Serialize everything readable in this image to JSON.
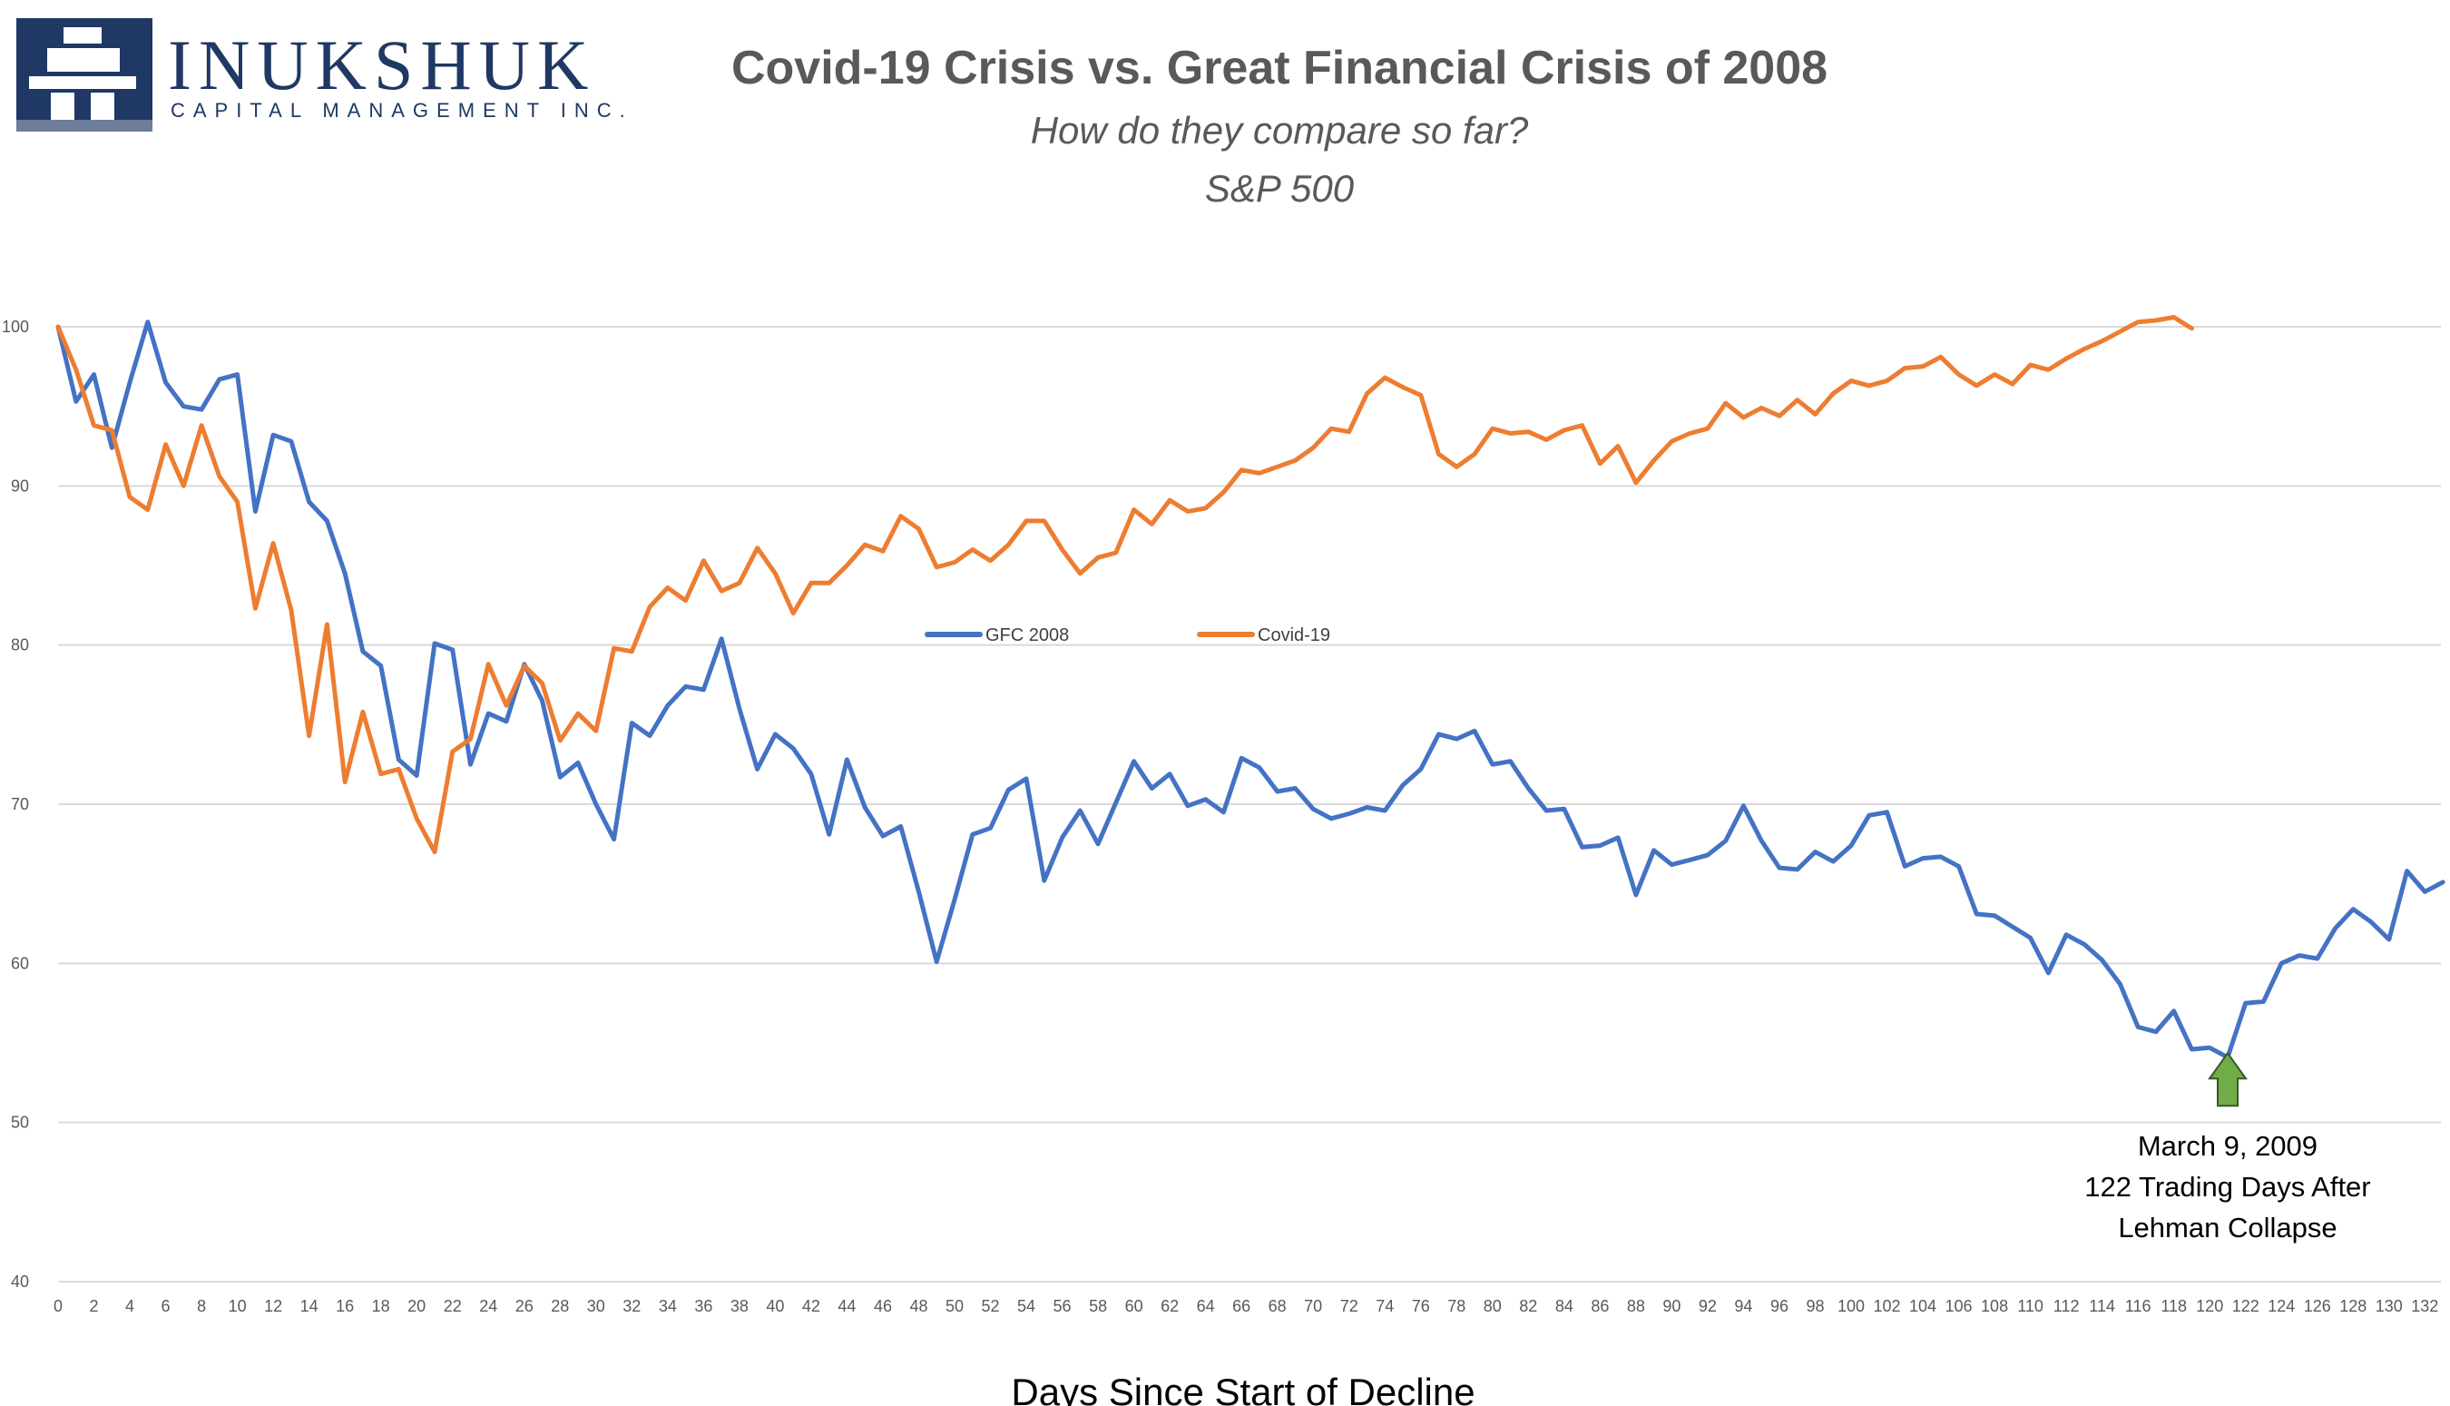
{
  "logo": {
    "name": "INUKSHUK",
    "subtitle": "CAPITAL MANAGEMENT INC.",
    "colors": {
      "navy": "#1f3864"
    }
  },
  "chart_data": {
    "type": "line",
    "title": "Covid-19 Crisis vs. Great Financial Crisis of 2008",
    "subtitle_lines": [
      "How do they compare so far?",
      "S&P 500"
    ],
    "xlabel": "Days Since Start of Decline",
    "ylabel": "",
    "xlim": [
      0,
      133
    ],
    "ylim": [
      40,
      100
    ],
    "yticks": [
      40,
      50,
      60,
      70,
      80,
      90,
      100
    ],
    "xticks": [
      0,
      2,
      4,
      6,
      8,
      10,
      12,
      14,
      16,
      18,
      20,
      22,
      24,
      26,
      28,
      30,
      32,
      34,
      36,
      38,
      40,
      42,
      44,
      46,
      48,
      50,
      52,
      54,
      56,
      58,
      60,
      62,
      64,
      66,
      68,
      70,
      72,
      74,
      76,
      78,
      80,
      82,
      84,
      86,
      88,
      90,
      92,
      94,
      96,
      98,
      100,
      102,
      104,
      106,
      108,
      110,
      112,
      114,
      116,
      118,
      120,
      122,
      124,
      126,
      128,
      130,
      132
    ],
    "grid": "horizontal",
    "legend_position": "center",
    "series": [
      {
        "name": "GFC 2008",
        "color": "#4472c4",
        "values": [
          100,
          95.3,
          97,
          92.4,
          96.5,
          100.3,
          96.5,
          95,
          94.8,
          96.7,
          97,
          88.4,
          93.2,
          92.8,
          89,
          87.8,
          84.5,
          79.6,
          78.7,
          72.8,
          71.8,
          80.1,
          79.7,
          72.5,
          75.7,
          75.2,
          78.8,
          76.5,
          71.7,
          72.6,
          70,
          67.8,
          75.1,
          74.3,
          76.2,
          77.4,
          77.2,
          80.4,
          76,
          72.2,
          74.4,
          73.5,
          71.9,
          68.1,
          72.8,
          69.8,
          68,
          68.6,
          64.5,
          60.1,
          64,
          68.1,
          68.5,
          70.9,
          71.6,
          65.2,
          67.9,
          69.6,
          67.5,
          70.1,
          72.7,
          71,
          71.9,
          69.9,
          70.3,
          69.5,
          72.9,
          72.3,
          70.8,
          71,
          69.7,
          69.1,
          69.4,
          69.8,
          69.6,
          71.2,
          72.2,
          74.4,
          74.1,
          74.6,
          72.5,
          72.7,
          71,
          69.6,
          69.7,
          67.3,
          67.4,
          67.9,
          64.3,
          67.1,
          66.2,
          66.5,
          66.8,
          67.7,
          69.9,
          67.7,
          66,
          65.9,
          67,
          66.4,
          67.4,
          69.3,
          69.5,
          66.1,
          66.6,
          66.7,
          66.1,
          63.1,
          63,
          62.3,
          61.6,
          59.4,
          61.8,
          61.2,
          60.2,
          58.7,
          56,
          55.7,
          57,
          54.6,
          54.7,
          54.1,
          57.5,
          57.6,
          60,
          60.5,
          60.3,
          62.2,
          63.4,
          62.6,
          61.5,
          65.8,
          64.5,
          65.1
        ]
      },
      {
        "name": "Covid-19",
        "color": "#ed7d31",
        "values": [
          100,
          97.3,
          93.8,
          93.5,
          89.3,
          88.5,
          92.6,
          90,
          93.8,
          90.6,
          89,
          82.3,
          86.4,
          82.2,
          74.3,
          81.3,
          71.4,
          75.8,
          71.9,
          72.2,
          69.1,
          67,
          73.3,
          74.1,
          78.8,
          76.2,
          78.7,
          77.6,
          74,
          75.7,
          74.6,
          79.8,
          79.6,
          82.4,
          83.6,
          82.8,
          85.3,
          83.4,
          83.9,
          86.1,
          84.5,
          82,
          83.9,
          83.9,
          85,
          86.3,
          85.9,
          88.1,
          87.3,
          84.9,
          85.2,
          86,
          85.3,
          86.3,
          87.8,
          87.8,
          86,
          84.5,
          85.5,
          85.8,
          88.5,
          87.6,
          89.1,
          88.4,
          88.6,
          89.6,
          91,
          90.8,
          91.2,
          91.6,
          92.4,
          93.6,
          93.4,
          95.8,
          96.8,
          96.2,
          95.7,
          92,
          91.2,
          92,
          93.6,
          93.3,
          93.4,
          92.9,
          93.5,
          93.8,
          91.4,
          92.5,
          90.2,
          91.6,
          92.8,
          93.3,
          93.6,
          95.2,
          94.3,
          94.9,
          94.4,
          95.4,
          94.5,
          95.8,
          96.6,
          96.3,
          96.6,
          97.4,
          97.5,
          98.1,
          97,
          96.3,
          97,
          96.4,
          97.6,
          97.3,
          98,
          98.6,
          99.1,
          99.7,
          100.3,
          100.4,
          100.6,
          99.9
        ]
      }
    ],
    "annotation": {
      "x": 121,
      "lines": [
        "March 9, 2009",
        "122 Trading Days After",
        "Lehman Collapse"
      ],
      "arrow_color": "#70ad47"
    }
  }
}
